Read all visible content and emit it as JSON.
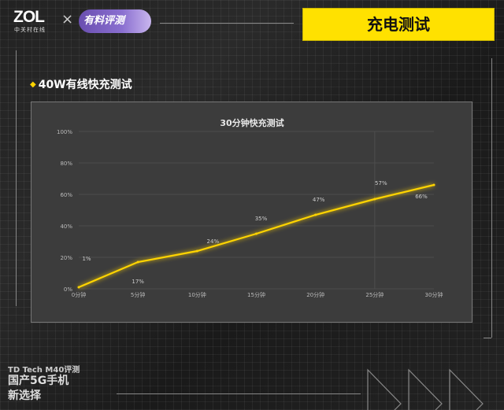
{
  "header": {
    "logo_text": "ZOL",
    "logo_subtitle": "中关村在线",
    "times_sign": "×",
    "partner_logo": "有料评测",
    "title": "充电测试",
    "accent_color": "#ffe100"
  },
  "section": {
    "bullet": "◆",
    "title": "40W有线快充测试"
  },
  "footer": {
    "brand": "TD Tech M40评测",
    "slogan_line1": "国产5G手机",
    "slogan_line2": "新选择"
  },
  "chart_data": {
    "type": "line",
    "title": "30分钟快充测试",
    "categories": [
      "0分钟",
      "5分钟",
      "10分钟",
      "15分钟",
      "20分钟",
      "25分钟",
      "30分钟"
    ],
    "x": [
      0,
      5,
      10,
      15,
      20,
      25,
      30
    ],
    "series": [
      {
        "values": [
          1,
          17,
          24,
          35,
          47,
          57,
          66
        ],
        "color": "#ffd400"
      }
    ],
    "data_labels": [
      "1%",
      "17%",
      "24%",
      "35%",
      "47%",
      "57%",
      "66%"
    ],
    "y_ticks": [
      "0%",
      "20%",
      "40%",
      "60%",
      "80%",
      "100%"
    ],
    "ylim": [
      0,
      100
    ],
    "grid": "horizontal",
    "legend": "none"
  }
}
